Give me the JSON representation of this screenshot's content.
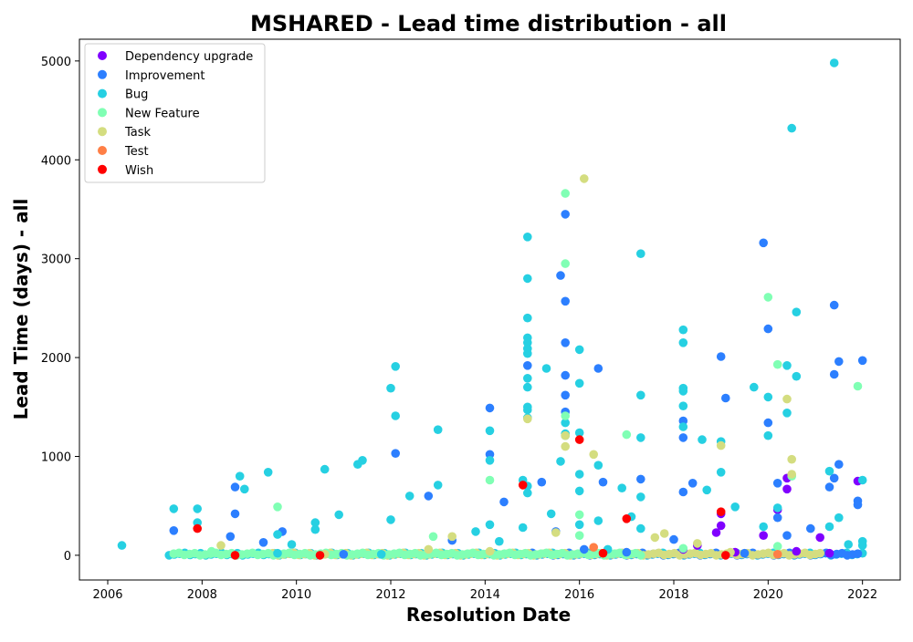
{
  "chart_data": {
    "type": "scatter",
    "title": "MSHARED - Lead time distribution - all",
    "xlabel": "Resolution Date",
    "ylabel": "Lead Time (days) - all",
    "xlim": [
      2005.4,
      2022.8
    ],
    "ylim": [
      -250,
      5220
    ],
    "x_ticks": [
      2006,
      2008,
      2010,
      2012,
      2014,
      2016,
      2018,
      2020,
      2022
    ],
    "y_ticks": [
      0,
      1000,
      2000,
      3000,
      4000,
      5000
    ],
    "grid": false,
    "legend_position": "top-left",
    "series": [
      {
        "name": "Dependency upgrade",
        "color": "#8000ff",
        "points": [
          [
            2018.5,
            100
          ],
          [
            2018.9,
            230
          ],
          [
            2019.0,
            300
          ],
          [
            2019.0,
            420
          ],
          [
            2019.9,
            200
          ],
          [
            2020.2,
            460
          ],
          [
            2020.4,
            780
          ],
          [
            2020.4,
            670
          ],
          [
            2021.1,
            180
          ],
          [
            2021.9,
            750
          ],
          [
            2020.6,
            40
          ],
          [
            2021.3,
            20
          ],
          [
            2018.2,
            60
          ],
          [
            2019.3,
            30
          ]
        ]
      },
      {
        "name": "Improvement",
        "color": "#2c7fff",
        "points": [
          [
            2007.4,
            250
          ],
          [
            2008.6,
            190
          ],
          [
            2008.7,
            690
          ],
          [
            2008.7,
            420
          ],
          [
            2009.3,
            130
          ],
          [
            2009.7,
            240
          ],
          [
            2012.1,
            1030
          ],
          [
            2012.8,
            600
          ],
          [
            2013.3,
            150
          ],
          [
            2014.1,
            1490
          ],
          [
            2014.1,
            1020
          ],
          [
            2014.4,
            540
          ],
          [
            2014.9,
            1920
          ],
          [
            2015.2,
            740
          ],
          [
            2015.6,
            2830
          ],
          [
            2015.7,
            3450
          ],
          [
            2015.7,
            2570
          ],
          [
            2015.7,
            2150
          ],
          [
            2015.7,
            1820
          ],
          [
            2015.7,
            1620
          ],
          [
            2015.7,
            1450
          ],
          [
            2016.4,
            1890
          ],
          [
            2016.5,
            740
          ],
          [
            2017.3,
            770
          ],
          [
            2018.2,
            1360
          ],
          [
            2018.2,
            1190
          ],
          [
            2018.2,
            640
          ],
          [
            2018.4,
            730
          ],
          [
            2019.0,
            2010
          ],
          [
            2019.1,
            1590
          ],
          [
            2019.9,
            3160
          ],
          [
            2020.0,
            2290
          ],
          [
            2020.0,
            1340
          ],
          [
            2020.2,
            730
          ],
          [
            2020.2,
            380
          ],
          [
            2020.4,
            200
          ],
          [
            2020.9,
            270
          ],
          [
            2021.3,
            690
          ],
          [
            2021.4,
            2530
          ],
          [
            2021.4,
            1830
          ],
          [
            2021.5,
            1960
          ],
          [
            2021.5,
            920
          ],
          [
            2021.4,
            780
          ],
          [
            2021.9,
            550
          ],
          [
            2021.9,
            510
          ],
          [
            2022.0,
            1970
          ],
          [
            2015.5,
            240
          ],
          [
            2017.0,
            30
          ],
          [
            2019.5,
            20
          ],
          [
            2011.0,
            10
          ],
          [
            2016.1,
            60
          ],
          [
            2018.0,
            160
          ]
        ]
      },
      {
        "name": "Bug",
        "color": "#26d0e2",
        "points": [
          [
            2006.3,
            100
          ],
          [
            2007.4,
            470
          ],
          [
            2007.9,
            470
          ],
          [
            2007.9,
            330
          ],
          [
            2008.8,
            800
          ],
          [
            2008.9,
            670
          ],
          [
            2009.4,
            840
          ],
          [
            2009.6,
            210
          ],
          [
            2009.9,
            110
          ],
          [
            2010.4,
            330
          ],
          [
            2010.4,
            260
          ],
          [
            2010.6,
            870
          ],
          [
            2010.9,
            410
          ],
          [
            2011.3,
            920
          ],
          [
            2011.4,
            960
          ],
          [
            2012.0,
            1690
          ],
          [
            2012.1,
            1910
          ],
          [
            2012.1,
            1410
          ],
          [
            2012.0,
            360
          ],
          [
            2012.4,
            600
          ],
          [
            2013.0,
            1270
          ],
          [
            2013.0,
            710
          ],
          [
            2013.8,
            240
          ],
          [
            2014.1,
            1260
          ],
          [
            2014.1,
            960
          ],
          [
            2014.1,
            310
          ],
          [
            2014.3,
            140
          ],
          [
            2014.8,
            760
          ],
          [
            2014.8,
            280
          ],
          [
            2014.9,
            3220
          ],
          [
            2014.9,
            2800
          ],
          [
            2014.9,
            2400
          ],
          [
            2014.9,
            2200
          ],
          [
            2014.9,
            2150
          ],
          [
            2014.9,
            2090
          ],
          [
            2014.9,
            2040
          ],
          [
            2014.9,
            1790
          ],
          [
            2014.9,
            1700
          ],
          [
            2014.9,
            1500
          ],
          [
            2014.9,
            1470
          ],
          [
            2014.9,
            1390
          ],
          [
            2014.9,
            700
          ],
          [
            2014.9,
            630
          ],
          [
            2015.3,
            1890
          ],
          [
            2015.4,
            420
          ],
          [
            2015.6,
            950
          ],
          [
            2015.7,
            1340
          ],
          [
            2015.7,
            1230
          ],
          [
            2015.7,
            1210
          ],
          [
            2016.0,
            2080
          ],
          [
            2016.0,
            1740
          ],
          [
            2016.0,
            1240
          ],
          [
            2016.0,
            820
          ],
          [
            2016.0,
            650
          ],
          [
            2016.0,
            310
          ],
          [
            2016.4,
            910
          ],
          [
            2016.4,
            350
          ],
          [
            2016.9,
            680
          ],
          [
            2017.3,
            1620
          ],
          [
            2017.3,
            1190
          ],
          [
            2017.3,
            270
          ],
          [
            2017.3,
            590
          ],
          [
            2017.3,
            3050
          ],
          [
            2017.1,
            390
          ],
          [
            2018.2,
            2280
          ],
          [
            2018.2,
            2150
          ],
          [
            2018.2,
            1690
          ],
          [
            2018.2,
            1660
          ],
          [
            2018.2,
            1510
          ],
          [
            2018.2,
            1300
          ],
          [
            2018.6,
            1170
          ],
          [
            2018.7,
            660
          ],
          [
            2019.0,
            1150
          ],
          [
            2019.0,
            840
          ],
          [
            2019.3,
            490
          ],
          [
            2019.7,
            1700
          ],
          [
            2019.9,
            290
          ],
          [
            2020.0,
            1600
          ],
          [
            2020.0,
            1210
          ],
          [
            2020.2,
            480
          ],
          [
            2020.4,
            1920
          ],
          [
            2020.4,
            1440
          ],
          [
            2020.5,
            4320
          ],
          [
            2020.6,
            2460
          ],
          [
            2020.6,
            1810
          ],
          [
            2021.3,
            290
          ],
          [
            2021.3,
            850
          ],
          [
            2021.4,
            4980
          ],
          [
            2021.5,
            380
          ],
          [
            2022.0,
            140
          ],
          [
            2022.0,
            100
          ],
          [
            2022.0,
            760
          ],
          [
            2009.6,
            20
          ],
          [
            2011.8,
            10
          ],
          [
            2016.6,
            60
          ],
          [
            2021.7,
            110
          ]
        ]
      },
      {
        "name": "New Feature",
        "color": "#80ffb4",
        "points": [
          [
            2009.6,
            490
          ],
          [
            2014.1,
            760
          ],
          [
            2015.7,
            3660
          ],
          [
            2015.7,
            2950
          ],
          [
            2015.7,
            1410
          ],
          [
            2016.0,
            410
          ],
          [
            2016.0,
            200
          ],
          [
            2017.0,
            1220
          ],
          [
            2018.2,
            70
          ],
          [
            2020.0,
            2610
          ],
          [
            2020.2,
            1930
          ],
          [
            2020.2,
            90
          ],
          [
            2020.5,
            800
          ],
          [
            2021.9,
            1710
          ],
          [
            2012.9,
            190
          ],
          [
            2008.2,
            40
          ]
        ]
      },
      {
        "name": "Task",
        "color": "#d4dd80",
        "points": [
          [
            2014.9,
            1380
          ],
          [
            2015.7,
            1210
          ],
          [
            2015.7,
            1100
          ],
          [
            2016.1,
            3810
          ],
          [
            2016.3,
            1020
          ],
          [
            2017.8,
            220
          ],
          [
            2017.6,
            180
          ],
          [
            2018.5,
            120
          ],
          [
            2019.0,
            1110
          ],
          [
            2020.4,
            1580
          ],
          [
            2020.5,
            970
          ],
          [
            2020.5,
            820
          ],
          [
            2013.3,
            190
          ],
          [
            2014.1,
            40
          ],
          [
            2015.5,
            230
          ],
          [
            2008.4,
            100
          ],
          [
            2010.6,
            10
          ],
          [
            2012.8,
            60
          ],
          [
            2019.2,
            30
          ],
          [
            2021.1,
            20
          ]
        ]
      },
      {
        "name": "Test",
        "color": "#ff7f46",
        "points": [
          [
            2016.3,
            80
          ],
          [
            2020.2,
            10
          ]
        ]
      },
      {
        "name": "Wish",
        "color": "#ff0000",
        "points": [
          [
            2007.9,
            270
          ],
          [
            2008.7,
            0
          ],
          [
            2010.5,
            0
          ],
          [
            2014.8,
            710
          ],
          [
            2016.0,
            1170
          ],
          [
            2016.5,
            20
          ],
          [
            2017.0,
            370
          ],
          [
            2019.0,
            440
          ],
          [
            2019.1,
            0
          ]
        ]
      }
    ],
    "dense_zero_ranges": [
      {
        "color": "#26d0e2",
        "from": 2007.3,
        "to": 2022.0
      },
      {
        "color": "#2c7fff",
        "from": 2015.0,
        "to": 2021.9
      },
      {
        "color": "#d4dd80",
        "from": 2009.5,
        "to": 2021.0
      },
      {
        "color": "#80ffb4",
        "from": 2007.4,
        "to": 2017.3
      }
    ]
  }
}
